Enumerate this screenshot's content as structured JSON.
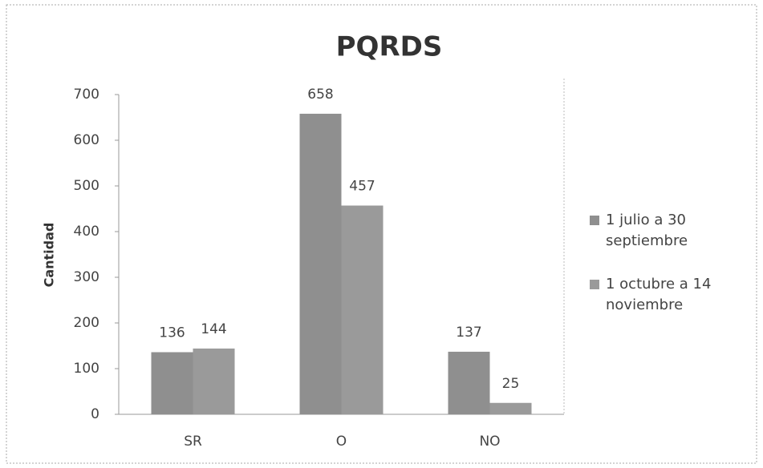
{
  "chart_data": {
    "type": "bar",
    "title": "PQRDS",
    "ylabel": "Cantidad",
    "categories": [
      "SR",
      "O",
      "NO"
    ],
    "series": [
      {
        "name": "1 julio a 30 septiembre",
        "color": "#8f8f8f",
        "values": [
          136,
          658,
          137
        ]
      },
      {
        "name": "1 octubre a 14 noviembre",
        "color": "#9a9a9a",
        "values": [
          144,
          457,
          25
        ]
      }
    ],
    "ylim": [
      0,
      700
    ],
    "yticks": [
      0,
      100,
      200,
      300,
      400,
      500,
      600,
      700
    ],
    "grid": false,
    "legend": "right"
  }
}
